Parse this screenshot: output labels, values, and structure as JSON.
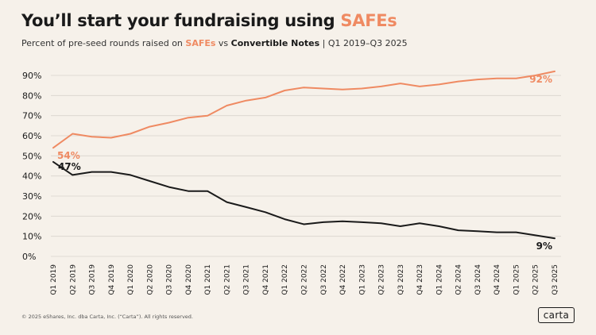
{
  "header": {
    "title_prefix": "You’ll start your fundraising using ",
    "title_highlight": "SAFEs",
    "subtitle_prefix": "Percent of pre-seed rounds raised on ",
    "subtitle_safes": "SAFEs",
    "subtitle_vs": " vs ",
    "subtitle_conv": "Convertible Notes",
    "subtitle_suffix": " | Q1 2019–Q3 2025"
  },
  "footer": {
    "copyright": "© 2025 eShares, Inc. dba Carta, Inc. (“Carta”). All rights reserved.",
    "logo_text": "carta"
  },
  "colors": {
    "background": "#f6f1ea",
    "safes": "#ef8a62",
    "notes": "#1a1a1a",
    "grid": "#d9d4cd"
  },
  "chart_data": {
    "type": "line",
    "title": "You’ll start your fundraising using SAFEs",
    "subtitle": "Percent of pre-seed rounds raised on SAFEs vs Convertible Notes | Q1 2019–Q3 2025",
    "xlabel": "",
    "ylabel": "",
    "ylim": [
      0,
      90
    ],
    "yticks": [
      0,
      10,
      20,
      30,
      40,
      50,
      60,
      70,
      80,
      90
    ],
    "ytick_labels": [
      "0%",
      "10%",
      "20%",
      "30%",
      "40%",
      "50%",
      "60%",
      "70%",
      "80%",
      "90%"
    ],
    "grid": true,
    "categories": [
      "Q1 2019",
      "Q2 2019",
      "Q3 2019",
      "Q4 2019",
      "Q1 2020",
      "Q2 2020",
      "Q3 2020",
      "Q4 2020",
      "Q1 2021",
      "Q2 2021",
      "Q3 2021",
      "Q4 2021",
      "Q1 2022",
      "Q2 2022",
      "Q3 2022",
      "Q4 2022",
      "Q1 2023",
      "Q2 2023",
      "Q3 2023",
      "Q4 2023",
      "Q1 2024",
      "Q2 2024",
      "Q3 2024",
      "Q4 2024",
      "Q1 2025",
      "Q2 2025",
      "Q3 2025"
    ],
    "series": [
      {
        "name": "SAFEs",
        "color": "#ef8a62",
        "values": [
          54,
          61,
          59.5,
          59,
          61,
          64.5,
          66.5,
          69,
          70,
          75,
          77.5,
          79,
          82.5,
          84,
          83.5,
          83,
          83.5,
          84.5,
          86,
          84.5,
          85.5,
          87,
          88,
          88.5,
          88.5,
          90,
          92
        ],
        "labels": [
          {
            "index": 0,
            "text": "54%"
          },
          {
            "index": 26,
            "text": "92%"
          }
        ]
      },
      {
        "name": "Convertible Notes",
        "color": "#1a1a1a",
        "values": [
          47,
          40.5,
          42,
          42,
          40.5,
          37.5,
          34.5,
          32.5,
          32.5,
          27,
          24.5,
          22,
          18.5,
          16,
          17,
          17.5,
          17,
          16.5,
          15,
          16.5,
          15,
          13,
          12.5,
          12,
          12,
          10.5,
          9
        ],
        "labels": [
          {
            "index": 0,
            "text": "47%"
          },
          {
            "index": 26,
            "text": "9%"
          }
        ]
      }
    ]
  }
}
